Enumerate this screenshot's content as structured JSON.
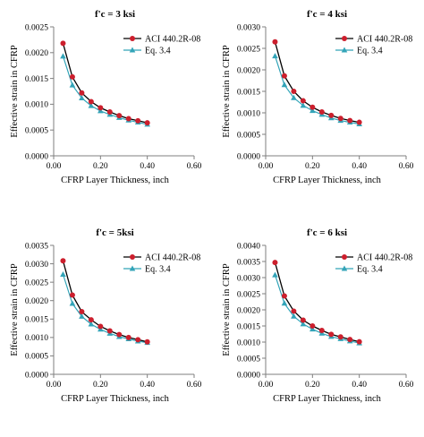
{
  "chart_data": [
    {
      "type": "line",
      "title": "f'c = 3 ksi",
      "xlabel": "CFRP Layer Thickness, inch",
      "ylabel": "Effective strain in CFRP",
      "xlim": [
        0,
        0.6
      ],
      "ylim": [
        0,
        0.0025
      ],
      "xticks": [
        "0.00",
        "0.20",
        "0.40",
        "0.60"
      ],
      "yticks": [
        "0.0000",
        "0.0005",
        "0.0010",
        "0.0015",
        "0.0020",
        "0.0025"
      ],
      "grid": false,
      "legend": "top-right",
      "x": [
        0.04,
        0.08,
        0.12,
        0.16,
        0.2,
        0.24,
        0.28,
        0.32,
        0.36,
        0.4
      ],
      "series": [
        {
          "name": "ACI 440.2R-08",
          "color": "#cc1f2d",
          "marker": "circle",
          "values": [
            0.00218,
            0.00153,
            0.00122,
            0.00105,
            0.00093,
            0.00085,
            0.00078,
            0.00072,
            0.00068,
            0.00064
          ]
        },
        {
          "name": "Eq. 3.4",
          "color": "#33a4b8",
          "marker": "triangle",
          "values": [
            0.00193,
            0.00137,
            0.00112,
            0.00097,
            0.00087,
            0.0008,
            0.00074,
            0.00069,
            0.00065,
            0.00061
          ]
        }
      ]
    },
    {
      "type": "line",
      "title": "f'c = 4 ksi",
      "xlabel": "CFRP Layer Thickness, inch",
      "ylabel": "Effective strain in CFRP",
      "xlim": [
        0,
        0.6
      ],
      "ylim": [
        0,
        0.003
      ],
      "xticks": [
        "0.00",
        "0.20",
        "0.40",
        "0.60"
      ],
      "yticks": [
        "0.0000",
        "0.0005",
        "0.0010",
        "0.0015",
        "0.0020",
        "0.0025",
        "0.0030"
      ],
      "grid": false,
      "legend": "top-right",
      "x": [
        0.04,
        0.08,
        0.12,
        0.16,
        0.2,
        0.24,
        0.28,
        0.32,
        0.36,
        0.4
      ],
      "series": [
        {
          "name": "ACI 440.2R-08",
          "color": "#cc1f2d",
          "marker": "circle",
          "values": [
            0.00265,
            0.00186,
            0.0015,
            0.00128,
            0.00113,
            0.00102,
            0.00094,
            0.00087,
            0.00082,
            0.00078
          ]
        },
        {
          "name": "Eq. 3.4",
          "color": "#33a4b8",
          "marker": "triangle",
          "values": [
            0.00232,
            0.00165,
            0.00135,
            0.00117,
            0.00105,
            0.00096,
            0.00088,
            0.00082,
            0.00078,
            0.00074
          ]
        }
      ]
    },
    {
      "type": "line",
      "title": "f'c = 5ksi",
      "xlabel": "CFRP Layer Thickness, inch",
      "ylabel": "Effective strain in CFRP",
      "xlim": [
        0,
        0.6
      ],
      "ylim": [
        0,
        0.0035
      ],
      "xticks": [
        "0.00",
        "0.20",
        "0.40",
        "0.60"
      ],
      "yticks": [
        "0.0000",
        "0.0005",
        "0.0010",
        "0.0015",
        "0.0020",
        "0.0025",
        "0.0030",
        "0.0035"
      ],
      "grid": false,
      "legend": "top-right",
      "x": [
        0.04,
        0.08,
        0.12,
        0.16,
        0.2,
        0.24,
        0.28,
        0.32,
        0.36,
        0.4
      ],
      "series": [
        {
          "name": "ACI 440.2R-08",
          "color": "#cc1f2d",
          "marker": "circle",
          "values": [
            0.00308,
            0.00215,
            0.0017,
            0.00148,
            0.0013,
            0.00118,
            0.00108,
            0.001,
            0.00094,
            0.00088
          ]
        },
        {
          "name": "Eq. 3.4",
          "color": "#33a4b8",
          "marker": "triangle",
          "values": [
            0.00271,
            0.00192,
            0.00157,
            0.00136,
            0.00122,
            0.00111,
            0.00102,
            0.00096,
            0.0009,
            0.00086
          ]
        }
      ]
    },
    {
      "type": "line",
      "title": "f'c = 6 ksi",
      "xlabel": "CFRP Layer Thickness, inch",
      "ylabel": "Effective strain in CFRP",
      "xlim": [
        0,
        0.6
      ],
      "ylim": [
        0,
        0.004
      ],
      "xticks": [
        "0.00",
        "0.20",
        "0.40",
        "0.60"
      ],
      "yticks": [
        "0.0000",
        "0.0005",
        "0.0010",
        "0.0015",
        "0.0020",
        "0.0025",
        "0.0030",
        "0.0035",
        "0.0040"
      ],
      "grid": false,
      "legend": "top-right",
      "x": [
        0.04,
        0.08,
        0.12,
        0.16,
        0.2,
        0.24,
        0.28,
        0.32,
        0.36,
        0.4
      ],
      "series": [
        {
          "name": "ACI 440.2R-08",
          "color": "#cc1f2d",
          "marker": "circle",
          "values": [
            0.00347,
            0.00243,
            0.00196,
            0.00168,
            0.0015,
            0.00136,
            0.00124,
            0.00116,
            0.00108,
            0.00101
          ]
        },
        {
          "name": "Eq. 3.4",
          "color": "#33a4b8",
          "marker": "triangle",
          "values": [
            0.00308,
            0.0022,
            0.0018,
            0.00156,
            0.0014,
            0.00127,
            0.00117,
            0.0011,
            0.00103,
            0.00097
          ]
        }
      ]
    }
  ]
}
